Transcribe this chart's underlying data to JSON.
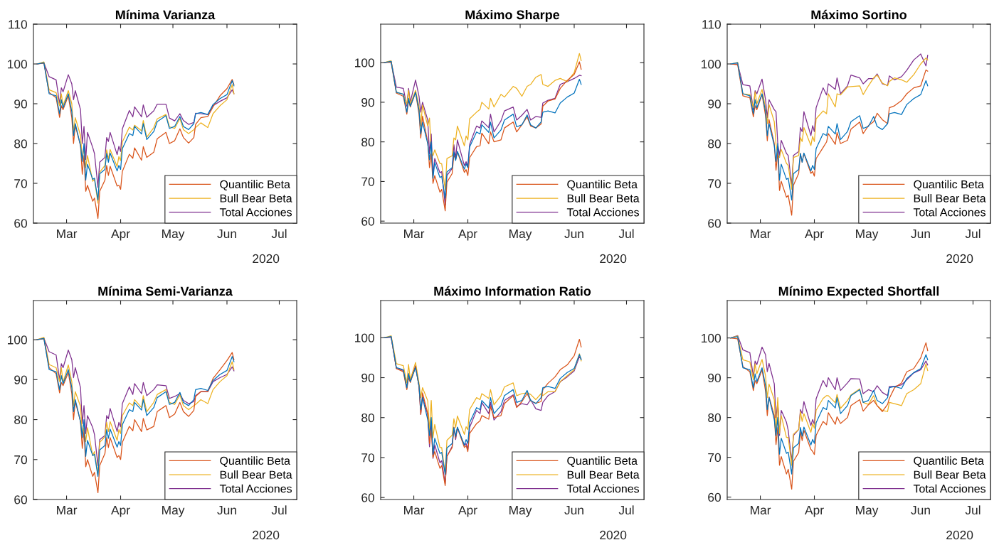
{
  "chart_data": [
    {
      "type": "line",
      "title": "Mínima Varianza",
      "legend": "bottom right",
      "grid": false,
      "annotations": [
        "2020"
      ],
      "x": [
        "2020-02-13",
        "2020-02-17",
        "2020-02-20",
        "2020-02-24",
        "2020-02-26",
        "2020-02-27",
        "2020-02-28",
        "2020-03-02",
        "2020-03-04",
        "2020-03-05",
        "2020-03-06",
        "2020-03-09",
        "2020-03-10",
        "2020-03-11",
        "2020-03-12",
        "2020-03-13",
        "2020-03-16",
        "2020-03-17",
        "2020-03-19",
        "2020-03-20",
        "2020-03-23",
        "2020-03-24",
        "2020-03-25",
        "2020-03-26",
        "2020-03-30",
        "2020-03-31",
        "2020-04-01",
        "2020-04-02",
        "2020-04-06",
        "2020-04-08",
        "2020-04-09",
        "2020-04-13",
        "2020-04-14",
        "2020-04-16",
        "2020-04-20",
        "2020-04-22",
        "2020-04-27",
        "2020-04-29",
        "2020-05-02",
        "2020-05-05",
        "2020-05-07",
        "2020-05-10",
        "2020-05-13",
        "2020-05-14",
        "2020-05-17",
        "2020-05-21",
        "2020-05-24",
        "2020-05-28",
        "2020-06-01",
        "2020-06-04",
        "2020-06-05"
      ],
      "xlim": [
        "2020-02-11",
        "2020-07-11"
      ],
      "xticks": [
        {
          "value": "2020-03-01",
          "label": "Mar"
        },
        {
          "value": "2020-04-01",
          "label": "Apr"
        },
        {
          "value": "2020-05-01",
          "label": "May"
        },
        {
          "value": "2020-06-01",
          "label": "Jun"
        },
        {
          "value": "2020-07-01",
          "label": "Jul"
        }
      ],
      "ylim": [
        60,
        110
      ],
      "yticks": [
        60,
        70,
        80,
        90,
        100,
        110
      ],
      "series": [
        {
          "color": "#0072bd",
          "values": [
            100,
            100.3,
            92.5,
            92,
            87.5,
            91,
            89,
            92.5,
            88,
            82,
            85,
            79.5,
            75.5,
            80,
            70.8,
            74.8,
            71,
            71.3,
            65.8,
            72.4,
            73.5,
            77.5,
            75.3,
            77.6,
            73.1,
            74.5,
            73.5,
            78.7,
            82.5,
            82,
            84.3,
            82.4,
            85,
            81,
            83,
            85.5,
            87,
            83.8,
            84.3,
            86.8,
            84.3,
            83.5,
            85,
            87.5,
            87.8,
            87.3,
            89.8,
            91.3,
            92.3,
            95.8,
            94.5
          ]
        },
        {
          "name": "Quantilic Beta",
          "color": "#d95319",
          "values": [
            100,
            100.2,
            92.8,
            91.5,
            86.6,
            89.5,
            88.5,
            92,
            86.5,
            80,
            84.5,
            79.5,
            72.3,
            77,
            68,
            69.5,
            65.5,
            66.3,
            61.2,
            68,
            70.8,
            74.5,
            72,
            74.3,
            69.3,
            69.5,
            68.5,
            73,
            77.3,
            76.3,
            78.9,
            75.8,
            79.2,
            76.5,
            77.8,
            81.2,
            82.8,
            80,
            80.7,
            83.7,
            81.5,
            80.1,
            81.5,
            84.8,
            86.5,
            86.8,
            89.2,
            92,
            93.8,
            96.1,
            94.8
          ]
        },
        {
          "name": "Bull Bear Beta",
          "color": "#edb120",
          "values": [
            100,
            100.5,
            93.5,
            92.8,
            89.5,
            92.5,
            89.5,
            93.3,
            90,
            83,
            86.5,
            82,
            76,
            79,
            74,
            77,
            70.5,
            71,
            65,
            72.8,
            74.5,
            78.4,
            76,
            78.5,
            74.2,
            76.7,
            75.7,
            80.4,
            84.1,
            83.4,
            84.6,
            83.2,
            85.8,
            81.6,
            84,
            86.2,
            87.3,
            84.2,
            83.8,
            86.3,
            83.5,
            82.5,
            83.5,
            84,
            85.2,
            84,
            87.5,
            89.5,
            91,
            94.8,
            92.5
          ]
        },
        {
          "name": "Total Acciones",
          "color": "#7e2f8e",
          "values": [
            100,
            100.3,
            96.8,
            96,
            90,
            94,
            93,
            97.3,
            95,
            91,
            93.3,
            88.5,
            80,
            84.3,
            76,
            82.8,
            79,
            77.5,
            69,
            75.3,
            76.5,
            81.5,
            80.5,
            82.8,
            77.2,
            79.3,
            78,
            83.7,
            88.3,
            86.7,
            89.2,
            86.7,
            89.7,
            86.6,
            88.2,
            89.9,
            89.9,
            86.4,
            85.7,
            87.5,
            85.8,
            84.8,
            85.3,
            87.6,
            87.5,
            87.3,
            89.5,
            90.6,
            91.5,
            93.5,
            92.5
          ]
        }
      ]
    },
    {
      "type": "line",
      "title": "Máximo Sharpe",
      "legend": "bottom right",
      "grid": false,
      "annotations": [
        "2020"
      ],
      "x": [
        "2020-02-13",
        "2020-02-17",
        "2020-02-20",
        "2020-02-24",
        "2020-02-26",
        "2020-02-27",
        "2020-02-28",
        "2020-03-02",
        "2020-03-04",
        "2020-03-05",
        "2020-03-06",
        "2020-03-09",
        "2020-03-10",
        "2020-03-11",
        "2020-03-12",
        "2020-03-13",
        "2020-03-16",
        "2020-03-17",
        "2020-03-19",
        "2020-03-20",
        "2020-03-23",
        "2020-03-24",
        "2020-03-25",
        "2020-03-26",
        "2020-03-30",
        "2020-03-31",
        "2020-04-01",
        "2020-04-02",
        "2020-04-06",
        "2020-04-08",
        "2020-04-09",
        "2020-04-13",
        "2020-04-14",
        "2020-04-16",
        "2020-04-20",
        "2020-04-22",
        "2020-04-27",
        "2020-04-29",
        "2020-05-02",
        "2020-05-05",
        "2020-05-07",
        "2020-05-10",
        "2020-05-13",
        "2020-05-14",
        "2020-05-17",
        "2020-05-21",
        "2020-05-24",
        "2020-05-28",
        "2020-06-01",
        "2020-06-04",
        "2020-06-05"
      ],
      "xlim": [
        "2020-02-11",
        "2020-07-11"
      ],
      "xticks": [
        {
          "value": "2020-03-01",
          "label": "Mar"
        },
        {
          "value": "2020-04-01",
          "label": "Apr"
        },
        {
          "value": "2020-05-01",
          "label": "May"
        },
        {
          "value": "2020-06-01",
          "label": "Jun"
        },
        {
          "value": "2020-07-01",
          "label": "Jul"
        }
      ],
      "ylim": [
        59.5,
        109.7
      ],
      "yticks": [
        60,
        70,
        80,
        90,
        100
      ],
      "series": [
        {
          "color": "#0072bd",
          "values": [
            100,
            100.3,
            92.5,
            92,
            87.5,
            91,
            89,
            92.5,
            88,
            82,
            85,
            79.5,
            75.5,
            80,
            70.8,
            74.8,
            71,
            71.3,
            65.8,
            72.4,
            73.5,
            77.5,
            75.3,
            77.6,
            73.1,
            74.5,
            73.5,
            78.7,
            82.5,
            82,
            84.3,
            82.4,
            85,
            81,
            83,
            85.5,
            87,
            83.8,
            84.3,
            86.8,
            84.3,
            83.5,
            85,
            87.5,
            87.8,
            87.3,
            89.8,
            91.3,
            92.3,
            95.8,
            94.5
          ]
        },
        {
          "name": "Quantilic Beta",
          "color": "#d95319",
          "values": [
            100,
            100.1,
            92.3,
            91.5,
            87,
            90.5,
            88.8,
            92.5,
            87,
            81,
            86.5,
            80,
            73.5,
            77,
            69.5,
            71.5,
            67.3,
            68,
            62.6,
            69.8,
            72,
            76.8,
            75.5,
            77.5,
            72.3,
            73,
            71.5,
            76,
            78.8,
            79,
            82.2,
            79.5,
            82.5,
            80,
            80.5,
            83.5,
            85,
            82.5,
            84.3,
            86.3,
            84,
            83.5,
            84.5,
            89,
            90.3,
            90.8,
            93.5,
            95.5,
            97,
            100.2,
            98.3
          ]
        },
        {
          "name": "Bull Bear Beta",
          "color": "#edb120",
          "values": [
            100,
            100.5,
            92.5,
            92,
            89.5,
            93,
            89.5,
            93,
            89,
            84,
            89.3,
            84,
            86,
            78,
            76.5,
            78,
            74.5,
            74.5,
            68,
            75.8,
            76.5,
            81,
            80.5,
            84,
            79,
            81.5,
            80.5,
            85.8,
            87.5,
            88.2,
            90,
            88.3,
            91,
            88.8,
            92,
            91.3,
            94,
            93.5,
            91.5,
            94,
            94.5,
            96.3,
            97,
            94.5,
            94,
            95.5,
            96,
            95.2,
            97.5,
            102.3,
            100.5
          ]
        },
        {
          "name": "Total Acciones",
          "color": "#7e2f8e",
          "values": [
            100,
            100.3,
            93.8,
            93.5,
            89,
            93.5,
            90,
            95.6,
            91.5,
            87.5,
            90,
            85.5,
            77,
            82,
            71.5,
            75.8,
            72.2,
            72.5,
            64,
            71.5,
            73.3,
            79.3,
            75.8,
            80.5,
            74,
            75,
            73.8,
            79.3,
            84,
            83.5,
            85.3,
            83.6,
            87,
            82.5,
            85.3,
            87.8,
            88.8,
            85.5,
            86.7,
            88.2,
            85.5,
            86.4,
            86.2,
            89.8,
            90.5,
            91,
            94.5,
            95.2,
            96,
            96.8,
            96.7
          ]
        }
      ]
    },
    {
      "type": "line",
      "title": "Máximo Sortino",
      "legend": "bottom right",
      "grid": false,
      "annotations": [
        "2020"
      ],
      "x": [
        "2020-02-13",
        "2020-02-17",
        "2020-02-20",
        "2020-02-24",
        "2020-02-26",
        "2020-02-27",
        "2020-02-28",
        "2020-03-02",
        "2020-03-04",
        "2020-03-05",
        "2020-03-06",
        "2020-03-09",
        "2020-03-10",
        "2020-03-11",
        "2020-03-12",
        "2020-03-13",
        "2020-03-16",
        "2020-03-17",
        "2020-03-19",
        "2020-03-20",
        "2020-03-23",
        "2020-03-24",
        "2020-03-25",
        "2020-03-26",
        "2020-03-30",
        "2020-03-31",
        "2020-04-01",
        "2020-04-02",
        "2020-04-06",
        "2020-04-08",
        "2020-04-09",
        "2020-04-13",
        "2020-04-14",
        "2020-04-16",
        "2020-04-20",
        "2020-04-22",
        "2020-04-27",
        "2020-04-29",
        "2020-05-02",
        "2020-05-05",
        "2020-05-07",
        "2020-05-10",
        "2020-05-13",
        "2020-05-14",
        "2020-05-17",
        "2020-05-21",
        "2020-05-24",
        "2020-05-28",
        "2020-06-01",
        "2020-06-04",
        "2020-06-05"
      ],
      "xlim": [
        "2020-02-11",
        "2020-07-11"
      ],
      "xticks": [
        {
          "value": "2020-03-01",
          "label": "Mar"
        },
        {
          "value": "2020-04-01",
          "label": "Apr"
        },
        {
          "value": "2020-05-01",
          "label": "May"
        },
        {
          "value": "2020-06-01",
          "label": "Jun"
        },
        {
          "value": "2020-07-01",
          "label": "Jul"
        }
      ],
      "ylim": [
        60,
        110
      ],
      "yticks": [
        60,
        70,
        80,
        90,
        100,
        110
      ],
      "series": [
        {
          "color": "#0072bd",
          "values": [
            100,
            100.3,
            92.5,
            92,
            87.5,
            91,
            89,
            92.5,
            88,
            82,
            85,
            79.5,
            75.5,
            80,
            70.8,
            74.8,
            71,
            71.3,
            65.8,
            72.4,
            73.5,
            77.5,
            75.3,
            77.6,
            73.1,
            74.5,
            73.5,
            78.7,
            82.5,
            82,
            84.3,
            82.4,
            85,
            81,
            83,
            85.5,
            87,
            83.8,
            84.3,
            86.8,
            84.3,
            83.5,
            85,
            87.5,
            87.8,
            87.3,
            89.8,
            91.3,
            92.3,
            95.8,
            94.5
          ]
        },
        {
          "name": "Quantilic Beta",
          "color": "#d95319",
          "values": [
            100,
            99.8,
            92,
            91.5,
            86.7,
            89.5,
            88.5,
            92.3,
            87,
            80.7,
            86,
            80,
            73.3,
            78,
            68.2,
            70.5,
            66.5,
            67,
            62,
            69.5,
            72.5,
            77.5,
            75.3,
            77.5,
            72.5,
            73,
            71.8,
            76.2,
            79,
            80.4,
            82.5,
            79.8,
            82.8,
            80,
            80.8,
            83.6,
            85.4,
            82.5,
            84.5,
            85.5,
            87.6,
            86,
            85,
            89,
            89.5,
            90.8,
            92.5,
            94,
            94.5,
            98.5,
            98.2
          ]
        },
        {
          "name": "Bull Bear Beta",
          "color": "#edb120",
          "values": [
            100,
            100.4,
            92.5,
            92.3,
            89,
            93,
            90,
            93.6,
            88.8,
            85,
            89.8,
            85.5,
            80,
            77,
            76.5,
            78.5,
            75,
            74.5,
            68.5,
            76.5,
            77,
            81.5,
            80.5,
            84,
            79.5,
            81.8,
            80.5,
            86.2,
            88.2,
            87.5,
            92.5,
            89.2,
            92.5,
            92.2,
            94.2,
            94.3,
            94.5,
            92.3,
            94.5,
            96.5,
            97.2,
            95.2,
            94.5,
            95.6,
            96.5,
            96,
            95.4,
            97.3,
            100,
            101.5,
            101
          ]
        },
        {
          "name": "Total Acciones",
          "color": "#7e2f8e",
          "values": [
            100,
            100,
            94.8,
            94.5,
            88.5,
            93.3,
            92.5,
            96.2,
            91,
            86.5,
            91,
            88.5,
            88,
            80,
            77,
            80.8,
            77.5,
            77,
            69.5,
            77,
            78,
            84,
            83,
            88,
            82,
            84.5,
            83,
            89,
            94,
            92.2,
            95,
            93.6,
            96.5,
            92.5,
            94.5,
            97.2,
            96.5,
            95,
            96.3,
            96.3,
            97.5,
            95,
            94.6,
            97,
            96,
            96.8,
            98.4,
            101,
            102.5,
            99.5,
            102.2
          ]
        }
      ]
    },
    {
      "type": "line",
      "title": "Mínima Semi-Varianza",
      "legend": "bottom right",
      "grid": false,
      "annotations": [
        "2020"
      ],
      "x": [
        "2020-02-13",
        "2020-02-17",
        "2020-02-20",
        "2020-02-24",
        "2020-02-26",
        "2020-02-27",
        "2020-02-28",
        "2020-03-02",
        "2020-03-04",
        "2020-03-05",
        "2020-03-06",
        "2020-03-09",
        "2020-03-10",
        "2020-03-11",
        "2020-03-12",
        "2020-03-13",
        "2020-03-16",
        "2020-03-17",
        "2020-03-19",
        "2020-03-20",
        "2020-03-23",
        "2020-03-24",
        "2020-03-25",
        "2020-03-26",
        "2020-03-30",
        "2020-03-31",
        "2020-04-01",
        "2020-04-02",
        "2020-04-06",
        "2020-04-08",
        "2020-04-09",
        "2020-04-13",
        "2020-04-14",
        "2020-04-16",
        "2020-04-20",
        "2020-04-22",
        "2020-04-27",
        "2020-04-29",
        "2020-05-02",
        "2020-05-05",
        "2020-05-07",
        "2020-05-10",
        "2020-05-13",
        "2020-05-14",
        "2020-05-17",
        "2020-05-21",
        "2020-05-24",
        "2020-05-28",
        "2020-06-01",
        "2020-06-04",
        "2020-06-05"
      ],
      "xlim": [
        "2020-02-11",
        "2020-07-11"
      ],
      "xticks": [
        {
          "value": "2020-03-01",
          "label": "Mar"
        },
        {
          "value": "2020-04-01",
          "label": "Apr"
        },
        {
          "value": "2020-05-01",
          "label": "May"
        },
        {
          "value": "2020-06-01",
          "label": "Jun"
        },
        {
          "value": "2020-07-01",
          "label": "Jul"
        }
      ],
      "ylim": [
        60,
        109.8
      ],
      "yticks": [
        60,
        70,
        80,
        90,
        100
      ],
      "series": [
        {
          "color": "#0072bd",
          "values": [
            100,
            100.3,
            92.5,
            92,
            87.5,
            91,
            89,
            92.5,
            88,
            82,
            85,
            79.5,
            75.5,
            80,
            70.8,
            74.8,
            71,
            71.3,
            65.8,
            72.4,
            73.5,
            77.5,
            75.3,
            77.6,
            73.1,
            74.5,
            73.5,
            78.7,
            82.5,
            82,
            84.3,
            82.4,
            85,
            81,
            83,
            85.5,
            87,
            83.8,
            84.3,
            86.8,
            84.3,
            83.5,
            85,
            87.5,
            87.8,
            87.3,
            89.8,
            91.3,
            92.3,
            95.8,
            94.5
          ]
        },
        {
          "name": "Quantilic Beta",
          "color": "#d95319",
          "values": [
            100,
            100.2,
            93,
            91.5,
            86.7,
            89.3,
            88.5,
            91.8,
            86.5,
            80,
            84.5,
            79.5,
            72.8,
            77.2,
            68.2,
            70,
            65.8,
            66.8,
            61.7,
            68.5,
            71.5,
            75.5,
            73,
            75.5,
            70.5,
            71,
            70,
            74.3,
            78.3,
            77.2,
            80,
            77,
            80.3,
            77.4,
            78.3,
            82,
            83.5,
            80.5,
            81.4,
            84.3,
            82,
            80.8,
            82.3,
            85.8,
            87,
            87,
            90.3,
            92.5,
            94.8,
            96.8,
            95
          ]
        },
        {
          "name": "Bull Bear Beta",
          "color": "#edb120",
          "values": [
            100,
            100.6,
            93.8,
            93,
            89.5,
            93,
            89.3,
            93.7,
            89.5,
            83.5,
            87,
            83.3,
            76.3,
            78,
            74.5,
            78,
            71,
            72,
            66.2,
            74.3,
            75.7,
            79.3,
            77,
            79.5,
            74.8,
            77.5,
            76.5,
            81,
            84.2,
            83.5,
            85,
            83,
            86,
            82,
            84.3,
            86.3,
            87.5,
            84.3,
            83.8,
            86.2,
            83.5,
            82.5,
            83.5,
            83.8,
            85,
            84,
            87.5,
            89.5,
            91,
            94.5,
            92.5
          ]
        },
        {
          "name": "Total Acciones",
          "color": "#7e2f8e",
          "values": [
            100,
            100.4,
            97,
            96.2,
            90,
            94,
            93,
            97.4,
            95,
            90.5,
            93,
            88,
            79,
            83.5,
            76.5,
            81,
            78,
            76.3,
            68.5,
            75,
            76,
            81,
            80.2,
            82.8,
            77,
            79.3,
            78.2,
            84,
            88.2,
            86.3,
            89,
            86.5,
            89.3,
            86,
            87.5,
            88.7,
            88.5,
            85.3,
            85.8,
            86.5,
            84.8,
            84,
            84.5,
            86,
            87,
            87,
            89.5,
            90.5,
            91.3,
            93.2,
            92.2
          ]
        }
      ]
    },
    {
      "type": "line",
      "title": "Máximo Information Ratio",
      "legend": "bottom right",
      "grid": false,
      "annotations": [
        "2020"
      ],
      "x": [
        "2020-02-13",
        "2020-02-17",
        "2020-02-20",
        "2020-02-24",
        "2020-02-26",
        "2020-02-27",
        "2020-02-28",
        "2020-03-02",
        "2020-03-04",
        "2020-03-05",
        "2020-03-06",
        "2020-03-09",
        "2020-03-10",
        "2020-03-11",
        "2020-03-12",
        "2020-03-13",
        "2020-03-16",
        "2020-03-17",
        "2020-03-19",
        "2020-03-20",
        "2020-03-23",
        "2020-03-24",
        "2020-03-25",
        "2020-03-26",
        "2020-03-30",
        "2020-03-31",
        "2020-04-01",
        "2020-04-02",
        "2020-04-06",
        "2020-04-08",
        "2020-04-09",
        "2020-04-13",
        "2020-04-14",
        "2020-04-16",
        "2020-04-20",
        "2020-04-22",
        "2020-04-27",
        "2020-04-29",
        "2020-05-02",
        "2020-05-05",
        "2020-05-07",
        "2020-05-10",
        "2020-05-13",
        "2020-05-14",
        "2020-05-17",
        "2020-05-21",
        "2020-05-24",
        "2020-05-28",
        "2020-06-01",
        "2020-06-04",
        "2020-06-05"
      ],
      "xlim": [
        "2020-02-11",
        "2020-07-11"
      ],
      "xticks": [
        {
          "value": "2020-03-01",
          "label": "Mar"
        },
        {
          "value": "2020-04-01",
          "label": "Apr"
        },
        {
          "value": "2020-05-01",
          "label": "May"
        },
        {
          "value": "2020-06-01",
          "label": "Jun"
        },
        {
          "value": "2020-07-01",
          "label": "Jul"
        }
      ],
      "ylim": [
        59.5,
        109.3
      ],
      "yticks": [
        60,
        70,
        80,
        90,
        100
      ],
      "series": [
        {
          "color": "#0072bd",
          "values": [
            100,
            100.3,
            92.5,
            92,
            87.5,
            91,
            89,
            92.5,
            88,
            82,
            85,
            79.5,
            75.5,
            80,
            70.8,
            74.8,
            71,
            71.3,
            65.8,
            72.4,
            73.5,
            77.5,
            75.3,
            77.6,
            73.1,
            74.5,
            73.5,
            78.7,
            82.5,
            82,
            84.3,
            82.4,
            85,
            81,
            83,
            85.5,
            87,
            83.8,
            84.3,
            86.8,
            84.3,
            83.5,
            85,
            87.5,
            87.8,
            87.3,
            89.8,
            91.3,
            92.3,
            95.8,
            94.5
          ]
        },
        {
          "name": "Quantilic Beta",
          "color": "#d95319",
          "values": [
            100,
            100.2,
            92.3,
            91.5,
            87,
            90,
            88.8,
            92.8,
            87.8,
            80.8,
            86.2,
            81,
            73.5,
            77,
            70,
            71.5,
            67.3,
            68,
            63,
            70.3,
            72.5,
            77.6,
            75,
            77.5,
            72.5,
            73,
            71.5,
            76,
            78.5,
            79.2,
            80.5,
            79.6,
            82.8,
            80,
            80.5,
            83.5,
            85.5,
            82.5,
            84,
            86,
            84.2,
            83.6,
            84,
            87,
            88.6,
            90.2,
            92,
            93.2,
            95.5,
            99.6,
            97.7
          ]
        },
        {
          "name": "Bull Bear Beta",
          "color": "#edb120",
          "values": [
            100,
            100.5,
            93.5,
            93,
            88.7,
            93.3,
            89.5,
            93.8,
            88.6,
            85,
            87.5,
            84.2,
            76.8,
            84.3,
            75,
            78.3,
            72.5,
            72.5,
            66,
            74.3,
            75.6,
            79.7,
            77.5,
            80.4,
            75.8,
            77.7,
            77,
            82,
            85,
            84.5,
            86,
            84.8,
            87,
            83.2,
            85.5,
            87.7,
            88.7,
            85.5,
            86,
            86.2,
            85.8,
            84.5,
            86,
            85.5,
            86.5,
            86.5,
            89,
            90.5,
            92,
            96,
            94.2
          ]
        },
        {
          "name": "Total Acciones",
          "color": "#7e2f8e",
          "values": [
            100,
            100.1,
            92.3,
            91.8,
            87.3,
            91,
            89.2,
            93,
            87.8,
            80.8,
            85.3,
            80.7,
            72.7,
            79,
            69.8,
            73.2,
            68.7,
            69.2,
            63.5,
            70.3,
            72.8,
            77.5,
            74.5,
            77.5,
            73,
            73.5,
            72,
            77.5,
            81.8,
            81,
            83.8,
            81,
            83.8,
            79.4,
            81.5,
            84.3,
            85.7,
            82.8,
            83.5,
            83.2,
            84.5,
            82.2,
            81.8,
            83.8,
            85.5,
            86.5,
            89,
            90.2,
            91.7,
            95.3,
            94.7
          ]
        }
      ]
    },
    {
      "type": "line",
      "title": "Mínimo Expected Shortfall",
      "legend": "bottom right",
      "grid": false,
      "annotations": [
        "2020"
      ],
      "x": [
        "2020-02-13",
        "2020-02-17",
        "2020-02-20",
        "2020-02-24",
        "2020-02-26",
        "2020-02-27",
        "2020-02-28",
        "2020-03-02",
        "2020-03-04",
        "2020-03-05",
        "2020-03-06",
        "2020-03-09",
        "2020-03-10",
        "2020-03-11",
        "2020-03-12",
        "2020-03-13",
        "2020-03-16",
        "2020-03-17",
        "2020-03-19",
        "2020-03-20",
        "2020-03-23",
        "2020-03-24",
        "2020-03-25",
        "2020-03-26",
        "2020-03-30",
        "2020-03-31",
        "2020-04-01",
        "2020-04-02",
        "2020-04-06",
        "2020-04-08",
        "2020-04-09",
        "2020-04-13",
        "2020-04-14",
        "2020-04-16",
        "2020-04-20",
        "2020-04-22",
        "2020-04-27",
        "2020-04-29",
        "2020-05-02",
        "2020-05-05",
        "2020-05-07",
        "2020-05-10",
        "2020-05-13",
        "2020-05-14",
        "2020-05-17",
        "2020-05-21",
        "2020-05-24",
        "2020-05-28",
        "2020-06-01",
        "2020-06-04",
        "2020-06-05"
      ],
      "xlim": [
        "2020-02-11",
        "2020-07-11"
      ],
      "xticks": [
        {
          "value": "2020-03-01",
          "label": "Mar"
        },
        {
          "value": "2020-04-01",
          "label": "Apr"
        },
        {
          "value": "2020-05-01",
          "label": "May"
        },
        {
          "value": "2020-06-01",
          "label": "Jun"
        },
        {
          "value": "2020-07-01",
          "label": "Jul"
        }
      ],
      "ylim": [
        59.4,
        109.4
      ],
      "yticks": [
        60,
        70,
        80,
        90,
        100
      ],
      "series": [
        {
          "color": "#0072bd",
          "values": [
            100,
            100.3,
            92.5,
            92,
            87.5,
            91,
            89,
            92.5,
            88,
            82,
            85,
            79.5,
            75.5,
            80,
            70.8,
            74.8,
            71,
            71.3,
            65.8,
            72.4,
            73.5,
            77.5,
            75.3,
            77.6,
            73.1,
            74.5,
            73.5,
            78.7,
            82.5,
            82,
            84.3,
            82.4,
            85,
            81,
            83,
            85.5,
            87,
            83.8,
            84.3,
            86.8,
            84.3,
            83.5,
            85,
            87.5,
            87.8,
            87.3,
            89.8,
            91.3,
            92.3,
            95.8,
            94.5
          ]
        },
        {
          "name": "Quantilic Beta",
          "color": "#d95319",
          "values": [
            100,
            99.8,
            92.8,
            91.5,
            86.8,
            89.3,
            88.5,
            92,
            86.6,
            80.5,
            85.2,
            80.5,
            73.2,
            77.5,
            68,
            70.2,
            65.8,
            67,
            62,
            69,
            71.2,
            76.5,
            74.2,
            76.8,
            72,
            71.5,
            70.7,
            75.5,
            79,
            78.2,
            81.2,
            78.3,
            80.2,
            78.5,
            80,
            83,
            84.5,
            81.6,
            83.2,
            84.3,
            83,
            81.5,
            83.3,
            84.8,
            87.5,
            88.7,
            91.5,
            92.3,
            95,
            98.8,
            96.8
          ]
        },
        {
          "name": "Bull Bear Beta",
          "color": "#edb120",
          "values": [
            100,
            100.5,
            94.5,
            94,
            89.5,
            93.5,
            91,
            94.6,
            90.5,
            85,
            88.4,
            84.5,
            76,
            85,
            76,
            80.5,
            75,
            75,
            68,
            75.8,
            77,
            81.5,
            79,
            81,
            76.3,
            78.5,
            77.3,
            81.8,
            84.8,
            85.5,
            85.5,
            83.7,
            85.8,
            82.3,
            84.3,
            85.7,
            87.2,
            83.8,
            83.3,
            85.5,
            83,
            81.8,
            81.5,
            83.8,
            83.5,
            83,
            86,
            87,
            88.5,
            93.5,
            91.8
          ]
        },
        {
          "name": "Total Acciones",
          "color": "#7e2f8e",
          "values": [
            100,
            100.6,
            97,
            96.3,
            90.3,
            94.2,
            93.3,
            97.7,
            95.8,
            91.5,
            93.6,
            88.5,
            80,
            83.8,
            75.5,
            81.8,
            78.8,
            76.8,
            69,
            75.5,
            77,
            82,
            81,
            84,
            78,
            79.5,
            78.3,
            84.7,
            89.3,
            87.7,
            90,
            87,
            90,
            86.8,
            88.7,
            89.8,
            89.7,
            86,
            87,
            86.5,
            88,
            86.3,
            85.5,
            87.8,
            87.8,
            88.2,
            89.5,
            91.2,
            92,
            94.2,
            93.2
          ]
        }
      ]
    }
  ]
}
